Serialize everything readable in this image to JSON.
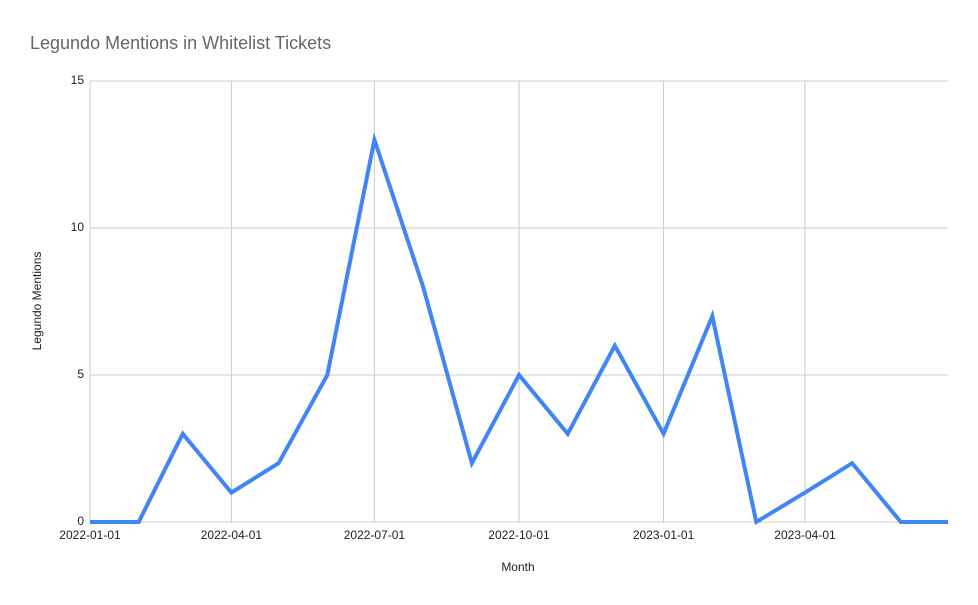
{
  "chart_data": {
    "type": "line",
    "title": "Legundo Mentions in Whitelist Tickets",
    "x_label": "Month",
    "y_label": "Legundo Mentions",
    "x": [
      "2022-01-01",
      "2022-02-01",
      "2022-03-01",
      "2022-04-01",
      "2022-05-01",
      "2022-06-01",
      "2022-07-01",
      "2022-08-01",
      "2022-09-01",
      "2022-10-01",
      "2022-11-01",
      "2022-12-01",
      "2023-01-01",
      "2023-02-01",
      "2023-03-01",
      "2023-04-01",
      "2023-05-01",
      "2023-06-01",
      "2023-07-01"
    ],
    "series": [
      {
        "name": "Legundo Mentions",
        "color": "#4285f4",
        "values": [
          0,
          0,
          3,
          1,
          2,
          5,
          13,
          8,
          2,
          5,
          3,
          6,
          3,
          7,
          0,
          1,
          2,
          0,
          0
        ]
      }
    ],
    "xlim": [
      "2022-01-01",
      "2023-07-01"
    ],
    "xticks": [
      "2022-01-01",
      "2022-04-01",
      "2022-07-01",
      "2022-10-01",
      "2023-01-01",
      "2023-04-01"
    ],
    "ylim": [
      0,
      15
    ],
    "yticks": [
      0,
      5,
      10,
      15
    ],
    "grid": true
  }
}
